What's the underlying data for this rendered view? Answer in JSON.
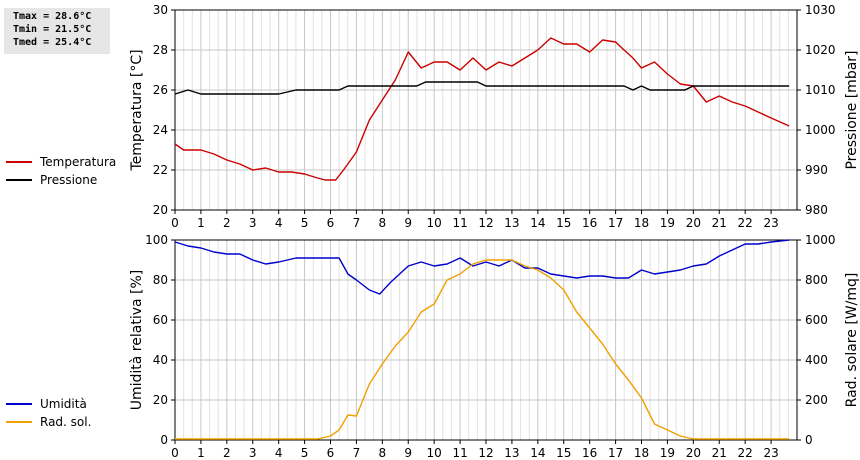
{
  "stats": {
    "tmax": "Tmax = 28.6°C",
    "tmin": "Tmin = 21.5°C",
    "tmed": "Tmed = 25.4°C"
  },
  "chart_data": [
    {
      "type": "line",
      "ylabel": "Temperatura [°C]",
      "y2label": "Pressione [mbar]",
      "ylim": [
        20,
        30
      ],
      "y2lim": [
        980,
        1030
      ],
      "xlim": [
        0,
        24
      ],
      "x_ticks": [
        0,
        1,
        2,
        3,
        4,
        5,
        6,
        7,
        8,
        9,
        10,
        11,
        12,
        13,
        14,
        15,
        16,
        17,
        18,
        19,
        20,
        21,
        22,
        23
      ],
      "y_ticks": [
        20,
        22,
        24,
        26,
        28,
        30
      ],
      "y2_ticks": [
        980,
        990,
        1000,
        1010,
        1020,
        1030
      ],
      "grid": true,
      "series": [
        {
          "name": "Temperatura",
          "color": "#cc0000",
          "axis": "left",
          "points": [
            [
              0,
              23.3
            ],
            [
              0.33,
              23.0
            ],
            [
              1,
              23.0
            ],
            [
              1.5,
              22.8
            ],
            [
              2,
              22.5
            ],
            [
              2.5,
              22.3
            ],
            [
              3,
              22.0
            ],
            [
              3.5,
              22.1
            ],
            [
              4,
              21.9
            ],
            [
              4.5,
              21.9
            ],
            [
              5,
              21.8
            ],
            [
              5.5,
              21.6
            ],
            [
              5.8,
              21.5
            ],
            [
              6.2,
              21.5
            ],
            [
              6.5,
              22.0
            ],
            [
              7,
              22.9
            ],
            [
              7.5,
              24.5
            ],
            [
              8,
              25.5
            ],
            [
              8.5,
              26.5
            ],
            [
              9,
              27.9
            ],
            [
              9.5,
              27.1
            ],
            [
              10,
              27.4
            ],
            [
              10.5,
              27.4
            ],
            [
              11,
              27.0
            ],
            [
              11.5,
              27.6
            ],
            [
              12,
              27.0
            ],
            [
              12.5,
              27.4
            ],
            [
              13,
              27.2
            ],
            [
              13.5,
              27.6
            ],
            [
              14,
              28.0
            ],
            [
              14.5,
              28.6
            ],
            [
              15,
              28.3
            ],
            [
              15.5,
              28.3
            ],
            [
              16,
              27.9
            ],
            [
              16.5,
              28.5
            ],
            [
              17,
              28.4
            ],
            [
              17.33,
              28.0
            ],
            [
              17.67,
              27.6
            ],
            [
              18,
              27.1
            ],
            [
              18.5,
              27.4
            ],
            [
              19,
              26.8
            ],
            [
              19.5,
              26.3
            ],
            [
              20,
              26.2
            ],
            [
              20.5,
              25.4
            ],
            [
              21,
              25.7
            ],
            [
              21.5,
              25.4
            ],
            [
              22,
              25.2
            ],
            [
              22.5,
              24.9
            ],
            [
              23,
              24.6
            ],
            [
              23.7,
              24.2
            ]
          ]
        },
        {
          "name": "Pressione",
          "color": "#000000",
          "axis": "right",
          "points": [
            [
              0,
              1009
            ],
            [
              0.5,
              1010
            ],
            [
              1,
              1009
            ],
            [
              4,
              1009
            ],
            [
              4.67,
              1010
            ],
            [
              6.33,
              1010
            ],
            [
              6.67,
              1011
            ],
            [
              9.33,
              1011
            ],
            [
              9.67,
              1012
            ],
            [
              11.67,
              1012
            ],
            [
              12,
              1011
            ],
            [
              17.33,
              1011
            ],
            [
              17.67,
              1010
            ],
            [
              18,
              1011
            ],
            [
              18.33,
              1010
            ],
            [
              19.67,
              1010
            ],
            [
              20,
              1011
            ],
            [
              23.7,
              1011
            ]
          ]
        }
      ]
    },
    {
      "type": "line",
      "ylabel": "Umidità relativa [%]",
      "y2label": "Rad. solare [W/mq]",
      "ylim": [
        0,
        100
      ],
      "y2lim": [
        0,
        1000
      ],
      "xlim": [
        0,
        24
      ],
      "x_ticks": [
        0,
        1,
        2,
        3,
        4,
        5,
        6,
        7,
        8,
        9,
        10,
        11,
        12,
        13,
        14,
        15,
        16,
        17,
        18,
        19,
        20,
        21,
        22,
        23
      ],
      "y_ticks": [
        0,
        20,
        40,
        60,
        80,
        100
      ],
      "y2_ticks": [
        0,
        200,
        400,
        600,
        800,
        1000
      ],
      "grid": true,
      "series": [
        {
          "name": "Umidità",
          "color": "#0000cc",
          "axis": "left",
          "points": [
            [
              0,
              99
            ],
            [
              0.5,
              97
            ],
            [
              1,
              96
            ],
            [
              1.5,
              94
            ],
            [
              2,
              93
            ],
            [
              2.5,
              93
            ],
            [
              3,
              90
            ],
            [
              3.5,
              88
            ],
            [
              4,
              89
            ],
            [
              4.67,
              91
            ],
            [
              6.33,
              91
            ],
            [
              6.67,
              83
            ],
            [
              7,
              80
            ],
            [
              7.5,
              75
            ],
            [
              7.9,
              73
            ],
            [
              8.33,
              79
            ],
            [
              9,
              87
            ],
            [
              9.5,
              89
            ],
            [
              10,
              87
            ],
            [
              10.5,
              88
            ],
            [
              11,
              91
            ],
            [
              11.5,
              87
            ],
            [
              12,
              89
            ],
            [
              12.5,
              87
            ],
            [
              13,
              90
            ],
            [
              13.5,
              86
            ],
            [
              14,
              86
            ],
            [
              14.5,
              83
            ],
            [
              15,
              82
            ],
            [
              15.5,
              81
            ],
            [
              16,
              82
            ],
            [
              16.5,
              82
            ],
            [
              17,
              81
            ],
            [
              17.5,
              81
            ],
            [
              18,
              85
            ],
            [
              18.5,
              83
            ],
            [
              19,
              84
            ],
            [
              19.5,
              85
            ],
            [
              20,
              87
            ],
            [
              20.5,
              88
            ],
            [
              21,
              92
            ],
            [
              21.5,
              95
            ],
            [
              22,
              98
            ],
            [
              22.5,
              98
            ],
            [
              23,
              99
            ],
            [
              23.7,
              100
            ]
          ]
        },
        {
          "name": "Rad. sol.",
          "color": "#f0a000",
          "axis": "right",
          "points": [
            [
              0,
              5
            ],
            [
              5.5,
              5
            ],
            [
              6,
              20
            ],
            [
              6.33,
              50
            ],
            [
              6.67,
              125
            ],
            [
              7,
              120
            ],
            [
              7.5,
              280
            ],
            [
              8,
              380
            ],
            [
              8.5,
              470
            ],
            [
              9,
              540
            ],
            [
              9.5,
              640
            ],
            [
              10,
              680
            ],
            [
              10.5,
              800
            ],
            [
              11,
              830
            ],
            [
              11.5,
              880
            ],
            [
              12,
              900
            ],
            [
              12.5,
              900
            ],
            [
              13,
              900
            ],
            [
              13.5,
              870
            ],
            [
              14,
              850
            ],
            [
              14.5,
              810
            ],
            [
              15,
              750
            ],
            [
              15.5,
              640
            ],
            [
              16,
              560
            ],
            [
              16.5,
              480
            ],
            [
              17,
              380
            ],
            [
              17.5,
              300
            ],
            [
              18,
              210
            ],
            [
              18.5,
              80
            ],
            [
              19,
              50
            ],
            [
              19.5,
              20
            ],
            [
              20,
              5
            ],
            [
              23.7,
              5
            ]
          ]
        }
      ]
    }
  ]
}
